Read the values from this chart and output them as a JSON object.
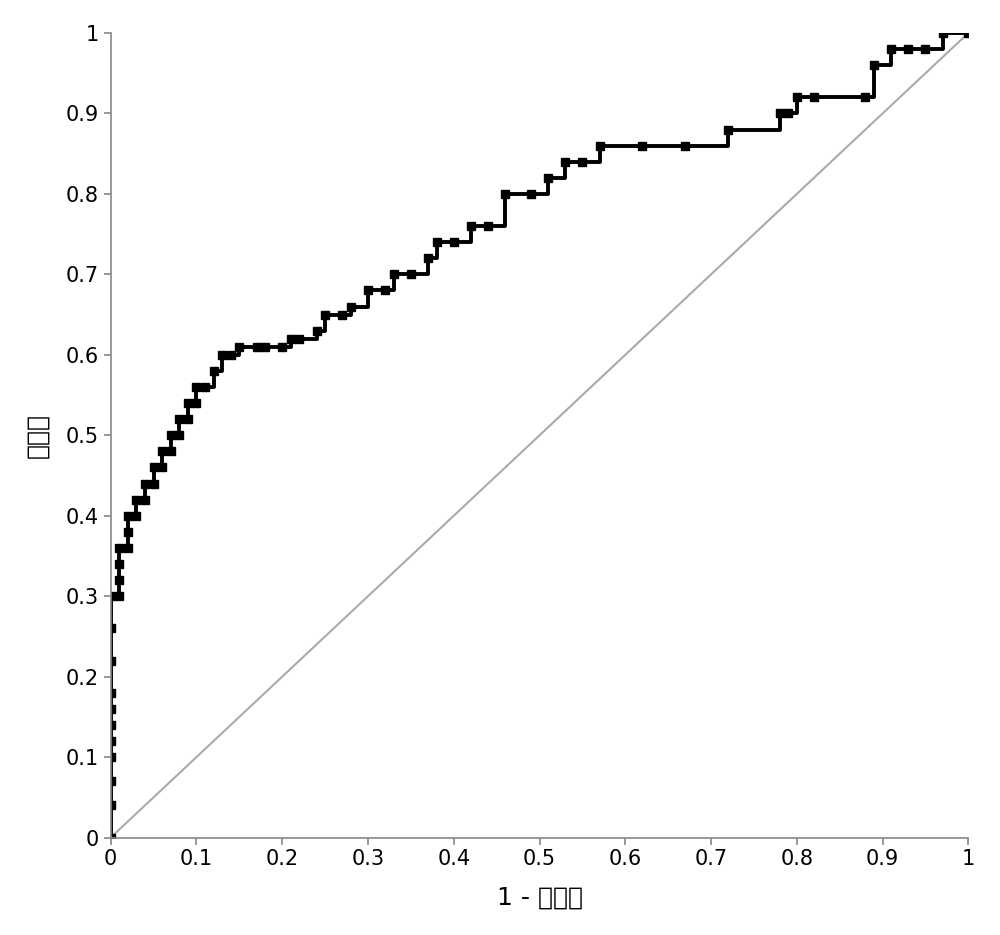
{
  "roc_fpr": [
    0.0,
    0.0,
    0.0,
    0.0,
    0.0,
    0.0,
    0.0,
    0.0,
    0.0,
    0.0,
    0.0,
    0.01,
    0.01,
    0.01,
    0.01,
    0.02,
    0.02,
    0.02,
    0.03,
    0.03,
    0.04,
    0.04,
    0.05,
    0.05,
    0.06,
    0.06,
    0.07,
    0.07,
    0.08,
    0.08,
    0.09,
    0.09,
    0.1,
    0.1,
    0.11,
    0.12,
    0.13,
    0.14,
    0.15,
    0.17,
    0.18,
    0.2,
    0.21,
    0.22,
    0.24,
    0.25,
    0.27,
    0.28,
    0.3,
    0.32,
    0.33,
    0.35,
    0.37,
    0.38,
    0.4,
    0.42,
    0.44,
    0.46,
    0.49,
    0.51,
    0.53,
    0.55,
    0.57,
    0.62,
    0.67,
    0.72,
    0.78,
    0.79,
    0.8,
    0.82,
    0.88,
    0.89,
    0.91,
    0.93,
    0.95,
    0.97,
    1.0
  ],
  "roc_tpr": [
    0.0,
    0.04,
    0.07,
    0.1,
    0.12,
    0.14,
    0.16,
    0.18,
    0.22,
    0.26,
    0.3,
    0.3,
    0.32,
    0.34,
    0.36,
    0.36,
    0.38,
    0.4,
    0.4,
    0.42,
    0.42,
    0.44,
    0.44,
    0.46,
    0.46,
    0.48,
    0.48,
    0.5,
    0.5,
    0.52,
    0.52,
    0.54,
    0.54,
    0.56,
    0.56,
    0.58,
    0.6,
    0.6,
    0.61,
    0.61,
    0.61,
    0.61,
    0.62,
    0.62,
    0.63,
    0.65,
    0.65,
    0.66,
    0.68,
    0.68,
    0.7,
    0.7,
    0.72,
    0.74,
    0.74,
    0.76,
    0.76,
    0.8,
    0.8,
    0.82,
    0.84,
    0.84,
    0.86,
    0.86,
    0.86,
    0.88,
    0.9,
    0.9,
    0.92,
    0.92,
    0.92,
    0.96,
    0.98,
    0.98,
    0.98,
    1.0,
    1.0
  ],
  "diag_line_x": [
    0.0,
    1.0
  ],
  "diag_line_y": [
    0.0,
    1.0
  ],
  "xlabel": "1 - 特异性",
  "ylabel": "灵敏度",
  "xlim": [
    0.0,
    1.0
  ],
  "ylim": [
    0.0,
    1.0
  ],
  "xticks": [
    0.0,
    0.1,
    0.2,
    0.3,
    0.4,
    0.5,
    0.6,
    0.7,
    0.8,
    0.9,
    1.0
  ],
  "yticks": [
    0.0,
    0.1,
    0.2,
    0.3,
    0.4,
    0.5,
    0.6,
    0.7,
    0.8,
    0.9,
    1.0
  ],
  "roc_color": "#000000",
  "diag_color": "#aaaaaa",
  "roc_linewidth": 2.8,
  "diag_linewidth": 1.5,
  "marker": "s",
  "markersize": 6,
  "xlabel_fontsize": 18,
  "ylabel_fontsize": 18,
  "tick_fontsize": 15,
  "background_color": "#ffffff",
  "spine_color": "#888888"
}
